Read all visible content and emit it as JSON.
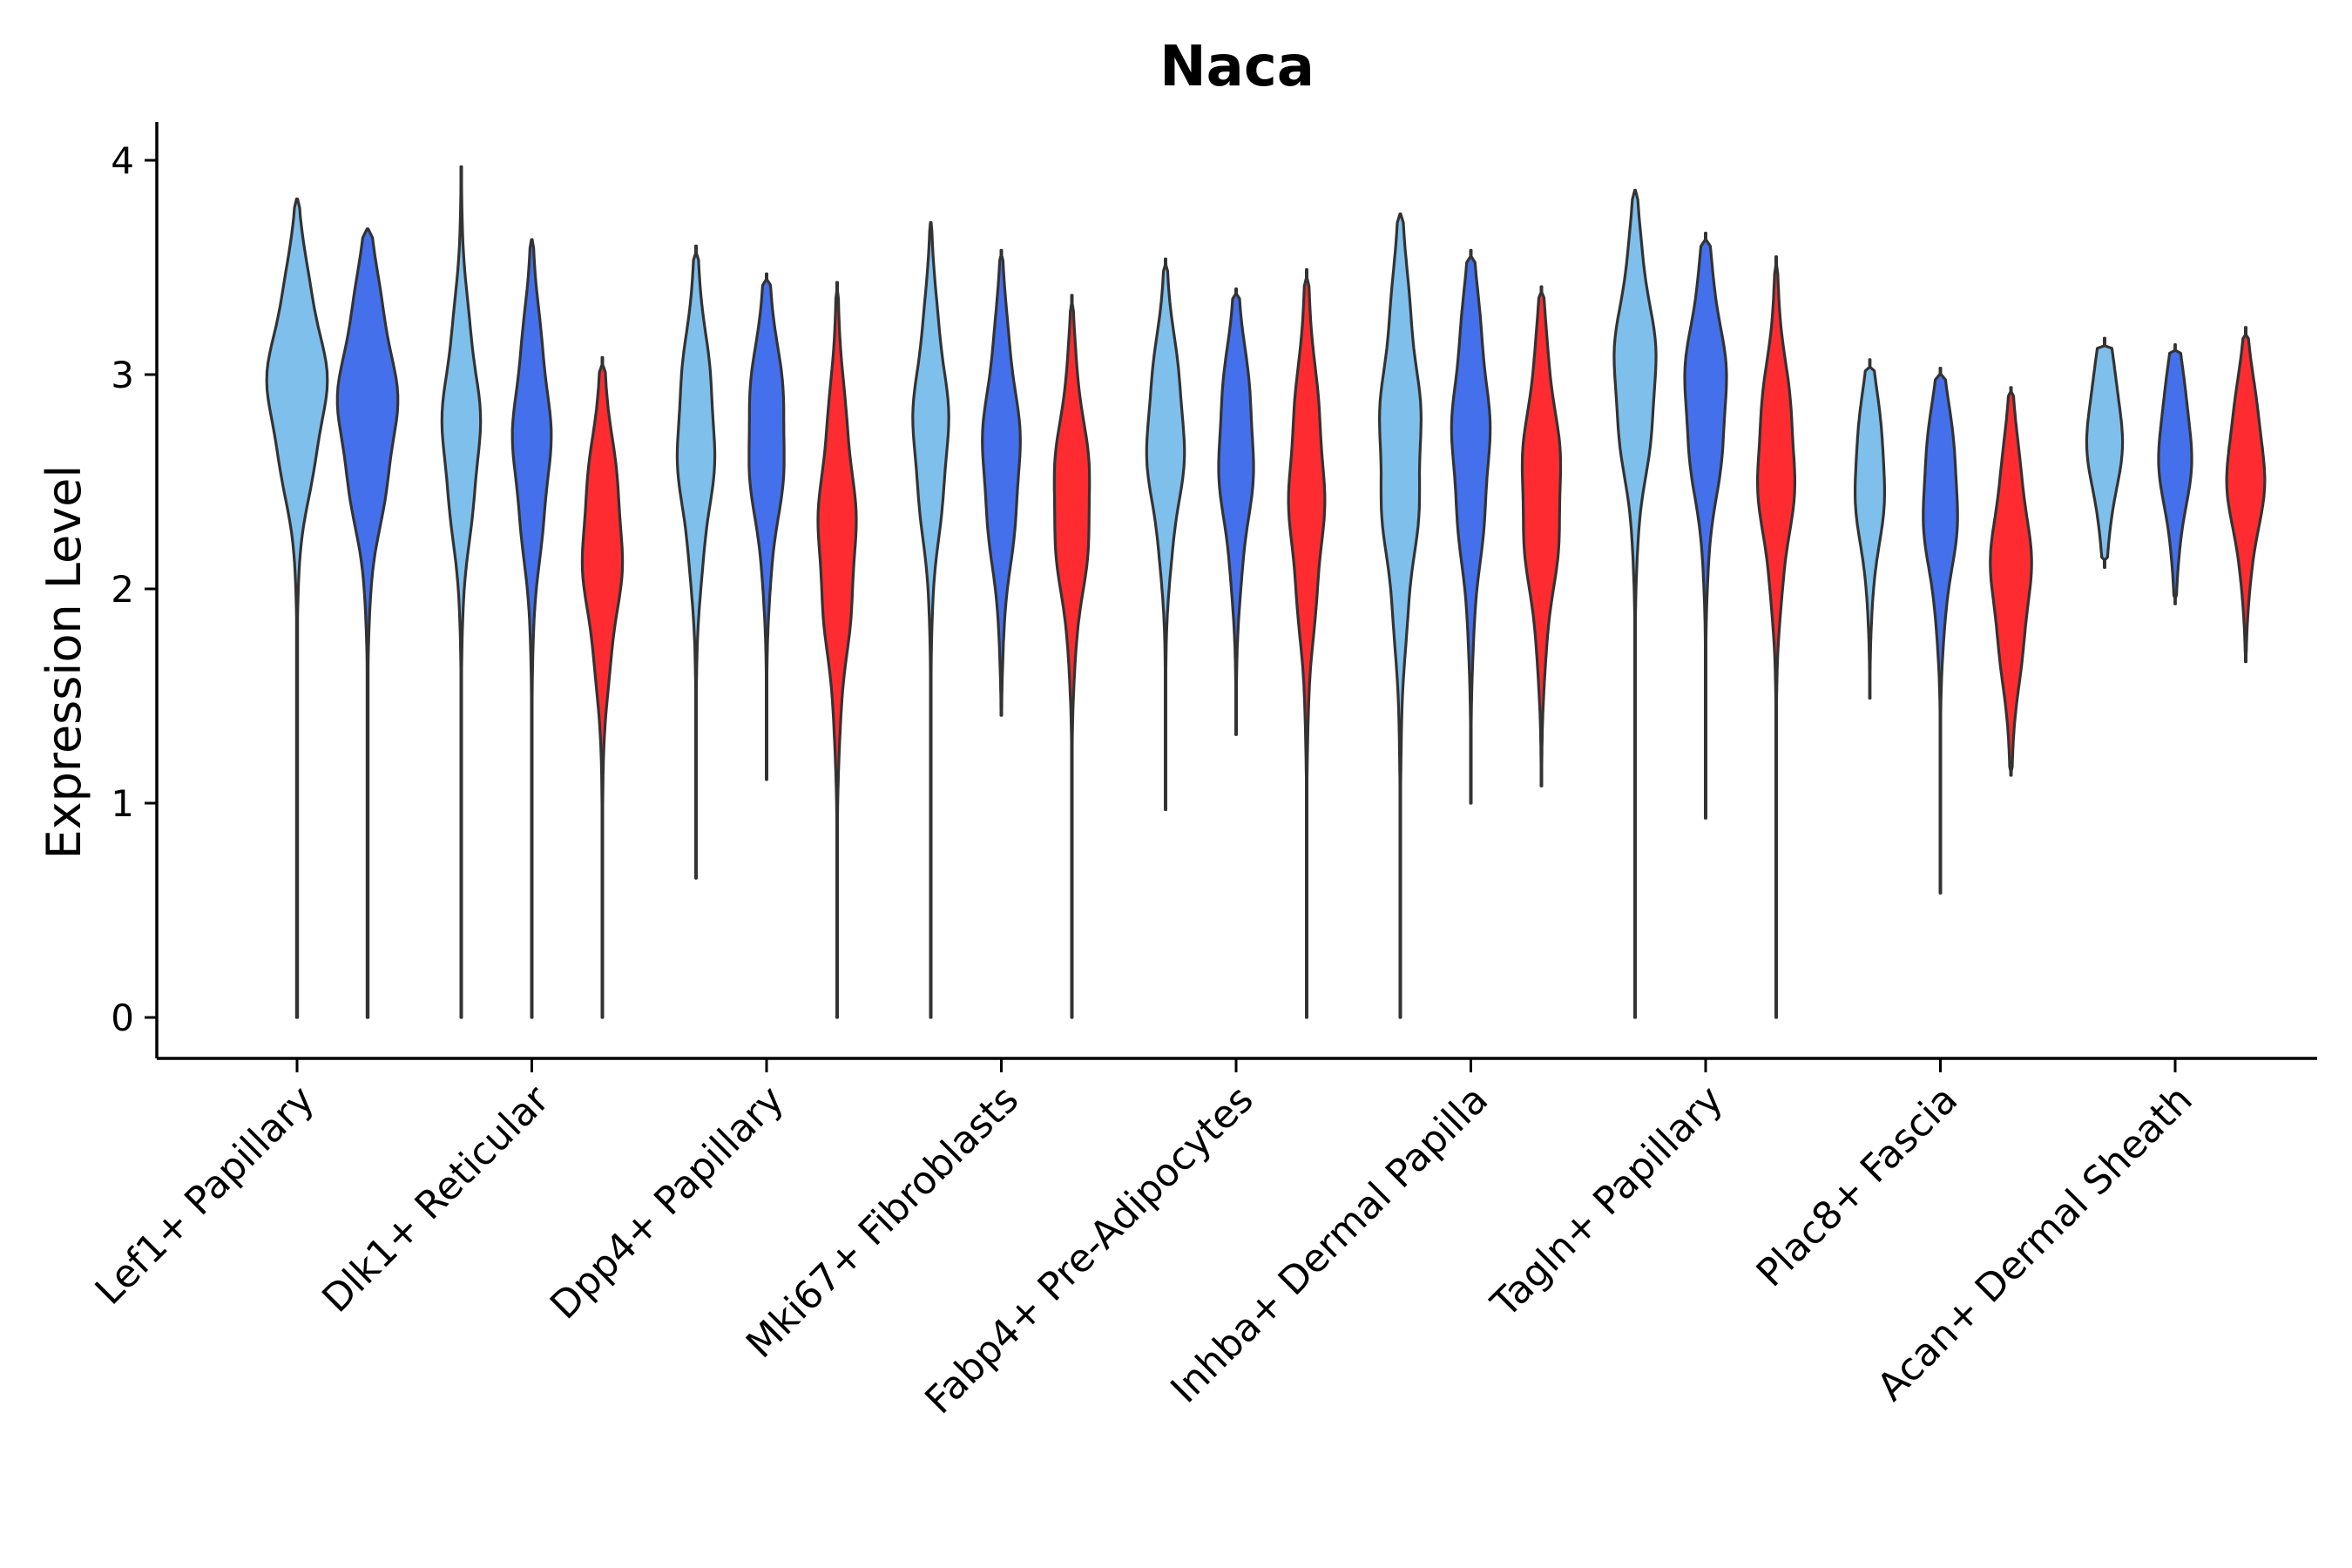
{
  "chart_data": {
    "type": "violin",
    "title": "Naca",
    "xlabel": "",
    "ylabel": "Expression Level",
    "ylim": [
      -0.2,
      4.2
    ],
    "yticks": [
      0,
      1,
      2,
      3,
      4
    ],
    "grid": false,
    "legend": "none",
    "categories": [
      "Lef1+ Papillary",
      "Dlk1+ Reticular",
      "Dpp4+ Papillary",
      "Mki67+ Fibroblasts",
      "Fabp4+ Pre-Adipocytes",
      "Inhba+ Dermal Papilla",
      "Tagln+ Papillary",
      "Plac8+ Fascia",
      "Acan+ Dermal Sheath"
    ],
    "group_colors": {
      "light_blue": "#7fbfec",
      "blue": "#4470ec",
      "red": "#fe2c30"
    },
    "series": [
      {
        "category": "Lef1+ Papillary",
        "group": "light_blue",
        "offset": 0,
        "min": 0.0,
        "max": 3.82,
        "peak": 2.95,
        "spread": 0.38,
        "halfwidth": 0.5
      },
      {
        "category": "Lef1+ Papillary",
        "group": "blue",
        "offset": 1,
        "min": 0.0,
        "max": 3.68,
        "peak": 2.85,
        "spread": 0.42,
        "halfwidth": 0.5
      },
      {
        "category": "Dlk1+ Reticular",
        "group": "light_blue",
        "offset": -1,
        "min": 0.0,
        "max": 3.97,
        "peak": 2.75,
        "spread": 0.4,
        "halfwidth": 0.32
      },
      {
        "category": "Dlk1+ Reticular",
        "group": "blue",
        "offset": 0,
        "min": 0.0,
        "max": 3.63,
        "peak": 2.7,
        "spread": 0.42,
        "halfwidth": 0.32
      },
      {
        "category": "Dlk1+ Reticular",
        "group": "red",
        "offset": 1,
        "min": 0.0,
        "max": 3.08,
        "peak": 2.2,
        "spread": 0.42,
        "halfwidth": 0.34
      },
      {
        "category": "Dpp4+ Papillary",
        "group": "light_blue",
        "offset": -1,
        "min": 0.65,
        "max": 3.6,
        "peak": 2.7,
        "spread": 0.42,
        "halfwidth": 0.32
      },
      {
        "category": "Dpp4+ Papillary",
        "group": "blue",
        "offset": 0,
        "min": 1.11,
        "max": 3.47,
        "peak": 2.72,
        "spread": 0.4,
        "halfwidth": 0.32
      },
      {
        "category": "Dpp4+ Papillary",
        "group": "red",
        "offset": 1,
        "min": 0.0,
        "max": 3.43,
        "peak": 2.25,
        "spread": 0.48,
        "halfwidth": 0.32
      },
      {
        "category": "Mki67+ Fibroblasts",
        "group": "light_blue",
        "offset": -1,
        "min": 0.0,
        "max": 3.71,
        "peak": 2.75,
        "spread": 0.4,
        "halfwidth": 0.3
      },
      {
        "category": "Mki67+ Fibroblasts",
        "group": "blue",
        "offset": 0,
        "min": 1.41,
        "max": 3.58,
        "peak": 2.62,
        "spread": 0.42,
        "halfwidth": 0.32
      },
      {
        "category": "Mki67+ Fibroblasts",
        "group": "red",
        "offset": 1,
        "min": 0.0,
        "max": 3.37,
        "peak": 2.4,
        "spread": 0.4,
        "halfwidth": 0.32
      },
      {
        "category": "Fabp4+ Pre-Adipocytes",
        "group": "light_blue",
        "offset": -1,
        "min": 0.97,
        "max": 3.54,
        "peak": 2.7,
        "spread": 0.38,
        "halfwidth": 0.32
      },
      {
        "category": "Fabp4+ Pre-Adipocytes",
        "group": "blue",
        "offset": 0,
        "min": 1.32,
        "max": 3.4,
        "peak": 2.65,
        "spread": 0.4,
        "halfwidth": 0.3
      },
      {
        "category": "Fabp4+ Pre-Adipocytes",
        "group": "red",
        "offset": 1,
        "min": 0.0,
        "max": 3.49,
        "peak": 2.45,
        "spread": 0.48,
        "halfwidth": 0.3
      },
      {
        "category": "Inhba+ Dermal Papilla",
        "group": "light_blue",
        "offset": -1,
        "min": 0.0,
        "max": 3.75,
        "peak": 2.65,
        "spread": 0.55,
        "halfwidth": 0.36
      },
      {
        "category": "Inhba+ Dermal Papilla",
        "group": "blue",
        "offset": 0,
        "min": 1.0,
        "max": 3.58,
        "peak": 2.7,
        "spread": 0.48,
        "halfwidth": 0.32
      },
      {
        "category": "Inhba+ Dermal Papilla",
        "group": "red",
        "offset": 1,
        "min": 1.08,
        "max": 3.41,
        "peak": 2.45,
        "spread": 0.45,
        "halfwidth": 0.34
      },
      {
        "category": "Tagln+ Papillary",
        "group": "light_blue",
        "offset": -1,
        "min": 0.0,
        "max": 3.86,
        "peak": 3.0,
        "spread": 0.4,
        "halfwidth": 0.36
      },
      {
        "category": "Tagln+ Papillary",
        "group": "blue",
        "offset": 0,
        "min": 0.93,
        "max": 3.66,
        "peak": 2.9,
        "spread": 0.4,
        "halfwidth": 0.36
      },
      {
        "category": "Tagln+ Papillary",
        "group": "red",
        "offset": 1,
        "min": 0.0,
        "max": 3.55,
        "peak": 2.58,
        "spread": 0.4,
        "halfwidth": 0.32
      },
      {
        "category": "Plac8+ Fascia",
        "group": "light_blue",
        "offset": -1,
        "min": 1.49,
        "max": 3.07,
        "peak": 2.52,
        "spread": 0.32,
        "halfwidth": 0.26
      },
      {
        "category": "Plac8+ Fascia",
        "group": "blue",
        "offset": 0,
        "min": 0.58,
        "max": 3.03,
        "peak": 2.42,
        "spread": 0.36,
        "halfwidth": 0.3
      },
      {
        "category": "Plac8+ Fascia",
        "group": "red",
        "offset": 1,
        "min": 1.13,
        "max": 2.94,
        "peak": 2.1,
        "spread": 0.4,
        "halfwidth": 0.34
      },
      {
        "category": "Acan+ Dermal Sheath",
        "group": "light_blue",
        "offset": -1,
        "min": 2.1,
        "max": 3.17,
        "peak": 2.72,
        "spread": 0.3,
        "halfwidth": 0.3
      },
      {
        "category": "Acan+ Dermal Sheath",
        "group": "blue",
        "offset": 0,
        "min": 1.93,
        "max": 3.14,
        "peak": 2.65,
        "spread": 0.3,
        "halfwidth": 0.28
      },
      {
        "category": "Acan+ Dermal Sheath",
        "group": "red",
        "offset": 1,
        "min": 1.66,
        "max": 3.22,
        "peak": 2.55,
        "spread": 0.32,
        "halfwidth": 0.32
      }
    ]
  }
}
